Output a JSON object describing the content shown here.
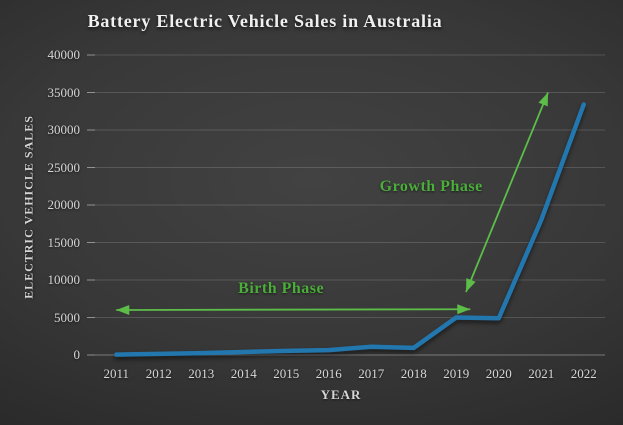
{
  "colors": {
    "background_center": "#424242",
    "background_edge": "#171717",
    "line": "#2277af",
    "arrow_green": "#5cbd49",
    "annotation_green": "#4bad3a",
    "title_text": "#f0f0f0",
    "axis_text": "#d6d6d6",
    "gridline": "rgba(255,255,255,0.15)",
    "zero_line": "rgba(255,255,255,0.35)",
    "tick_mark": "rgba(255,255,255,0.45)"
  },
  "chart_data": {
    "type": "line",
    "title": "Battery Electric Vehicle Sales in Australia",
    "xlabel": "YEAR",
    "ylabel": "ELECTRIC VEHICLE SALES",
    "categories": [
      "2011",
      "2012",
      "2013",
      "2014",
      "2015",
      "2016",
      "2017",
      "2018",
      "2019",
      "2020",
      "2021",
      "2022"
    ],
    "series": [
      {
        "name": "Battery electric vehicle sales",
        "values": [
          49,
          150,
          250,
          400,
          550,
          650,
          1100,
          950,
          5000,
          4900,
          18000,
          33400
        ]
      }
    ],
    "ylim": [
      0,
      40000
    ],
    "yticks": [
      0,
      5000,
      10000,
      15000,
      20000,
      25000,
      30000,
      35000,
      40000
    ],
    "grid": true,
    "legend": false,
    "annotations": [
      {
        "label": "Birth Phase",
        "arrow": {
          "style": "double-headed",
          "x1_year": 2011.0,
          "y1_value": 6000,
          "x2_year": 2019.33,
          "y2_value": 6100
        },
        "label_pos": {
          "x_year": 2014.88,
          "y_value": 8800
        }
      },
      {
        "label": "Growth Phase",
        "arrow": {
          "style": "double-headed",
          "x1_year": 2019.23,
          "y1_value": 8400,
          "x2_year": 2021.16,
          "y2_value": 35000
        },
        "label_pos": {
          "x_year": 2018.41,
          "y_value": 22400
        }
      }
    ]
  }
}
